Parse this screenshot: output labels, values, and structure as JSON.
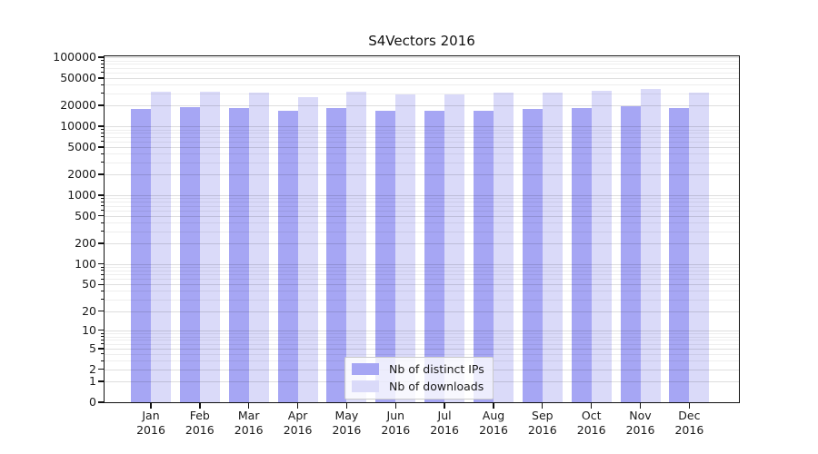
{
  "chart_data": {
    "type": "bar",
    "title": "S4Vectors 2016",
    "scale": "log1p",
    "grid": "both",
    "legend_position": "bottom-center",
    "ylim": [
      0,
      103000
    ],
    "yticks": [
      0,
      1,
      2,
      5,
      10,
      20,
      50,
      100,
      200,
      500,
      1000,
      2000,
      5000,
      10000,
      20000,
      50000,
      100000
    ],
    "ytick_labels": [
      "0",
      "1",
      "2",
      "5",
      "10",
      "20",
      "50",
      "100",
      "200",
      "500",
      "1000",
      "2000",
      "5000",
      "10000",
      "20000",
      "50000",
      "100000"
    ],
    "categories": [
      "Jan",
      "Feb",
      "Mar",
      "Apr",
      "May",
      "Jun",
      "Jul",
      "Aug",
      "Sep",
      "Oct",
      "Nov",
      "Dec"
    ],
    "year_label": "2016",
    "series": [
      {
        "name": "Nb of distinct IPs",
        "color": "#a6a6f4",
        "values": [
          17900,
          18700,
          18400,
          16800,
          18400,
          16900,
          16700,
          16800,
          17800,
          18400,
          19300,
          18400
        ]
      },
      {
        "name": "Nb of downloads",
        "color": "#dadaf9",
        "values": [
          31700,
          31700,
          31000,
          26500,
          32000,
          28900,
          28800,
          31000,
          31000,
          32600,
          34800,
          30700
        ]
      }
    ]
  }
}
